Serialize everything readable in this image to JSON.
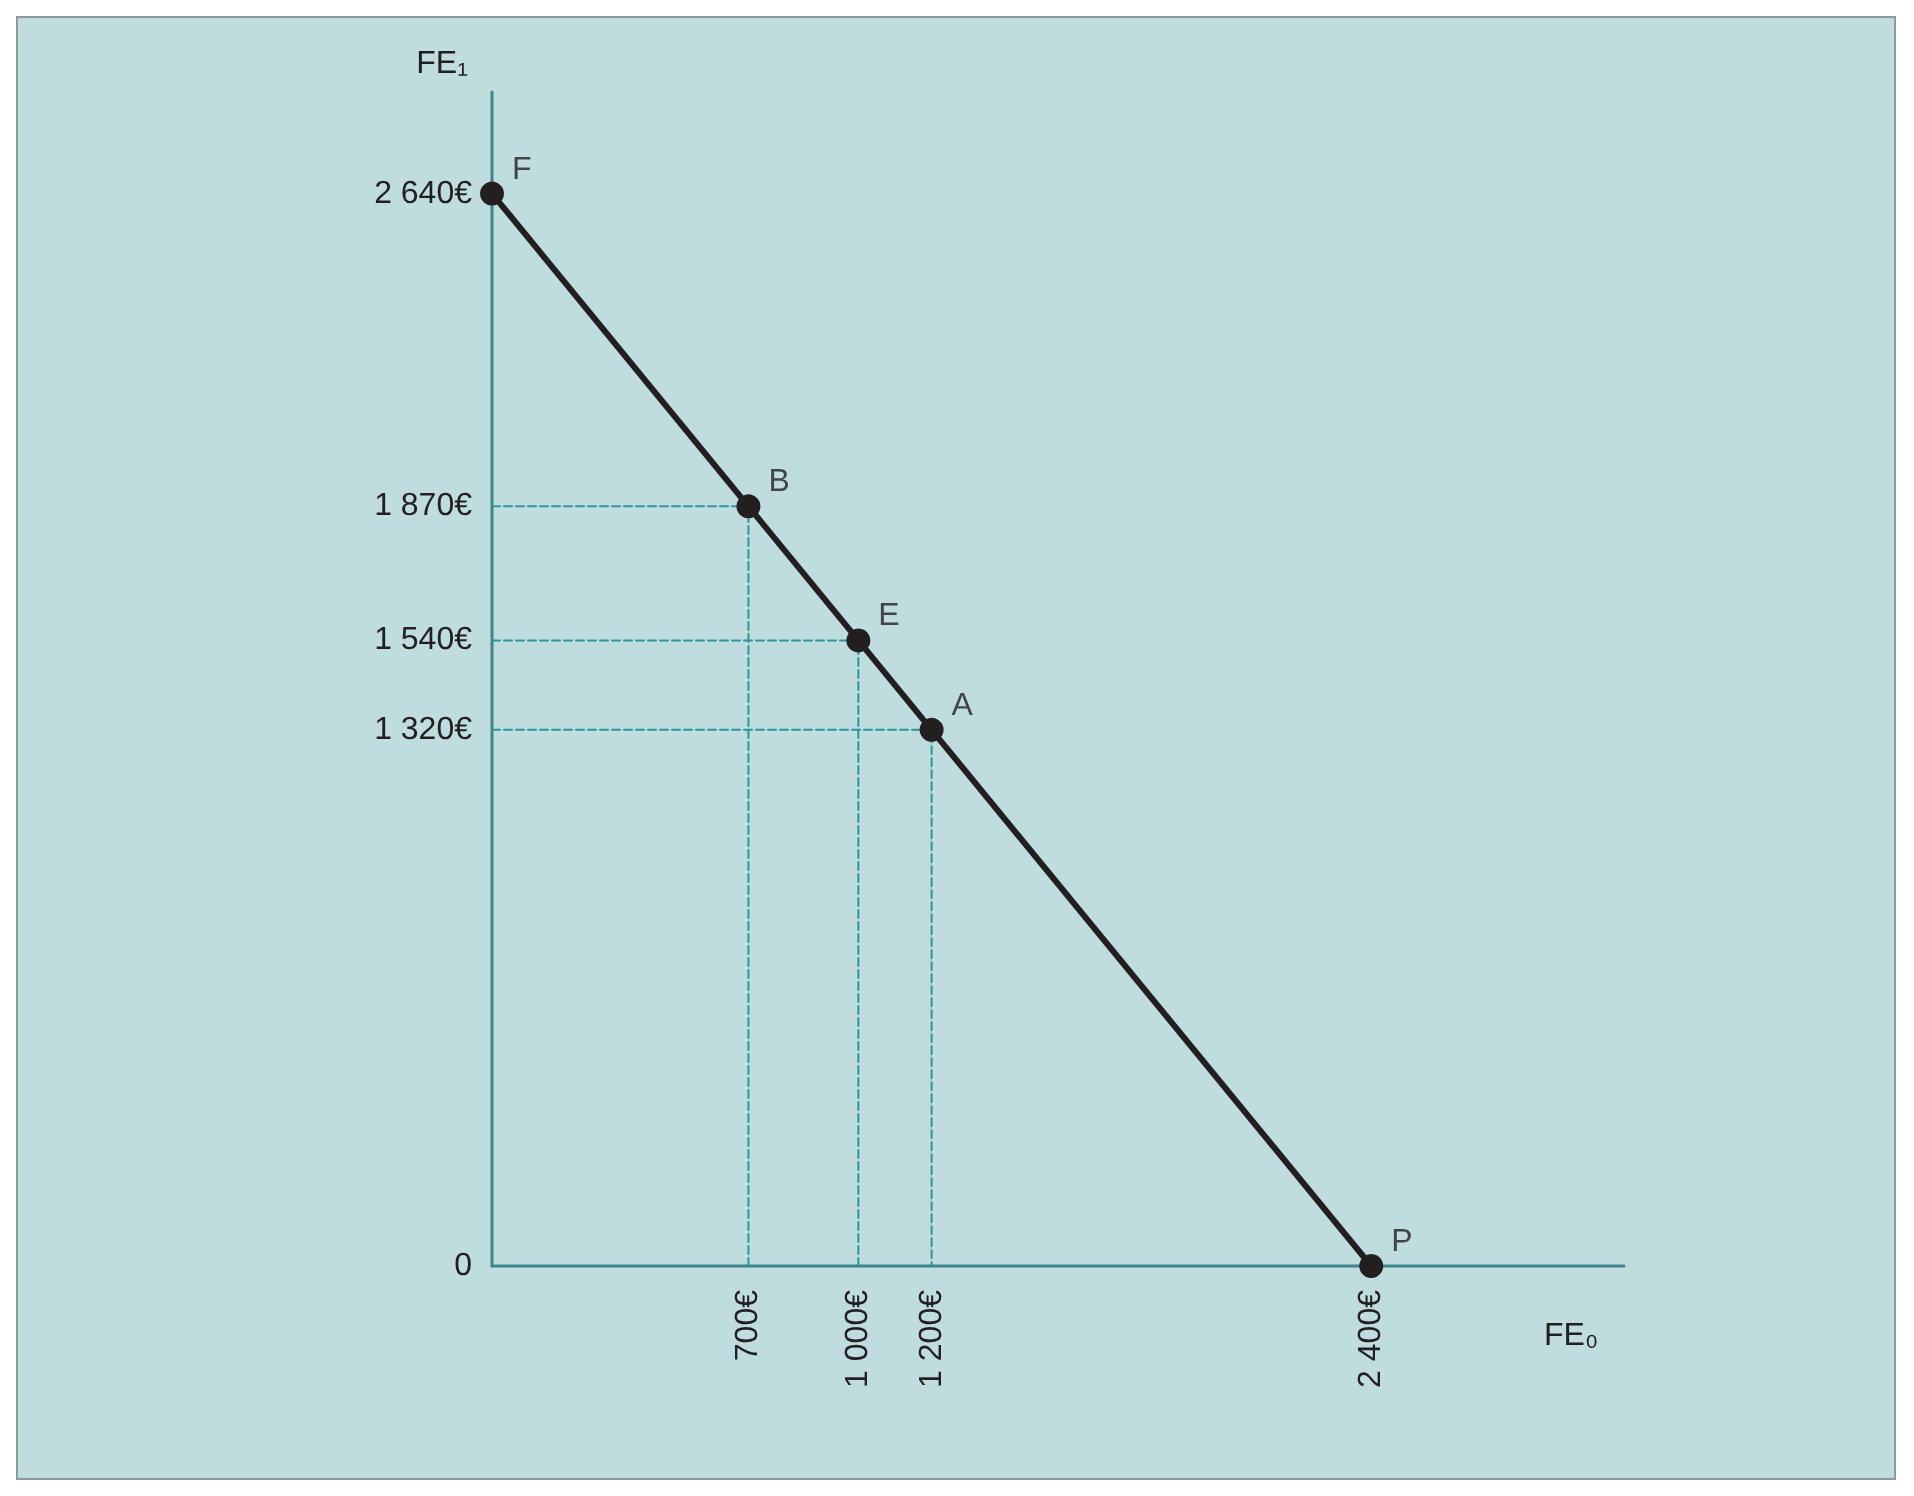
{
  "chart_data": {
    "type": "line",
    "xlabel": "FE₀",
    "ylabel": "FE₁",
    "x": [
      0,
      700,
      1000,
      1200,
      2400
    ],
    "series": [
      {
        "color": "#231f20",
        "values": [
          2640,
          1870,
          1540,
          1320,
          0
        ],
        "marker": "circle",
        "line_style": "solid"
      },
      {
        "color": "#2a9699",
        "x": [
          0,
          700,
          700
        ],
        "values": [
          1870,
          1870,
          0
        ],
        "marker": "none",
        "line_style": "dashed"
      },
      {
        "color": "#2a9699",
        "x": [
          0,
          1000,
          1000
        ],
        "values": [
          1540,
          1540,
          0
        ],
        "marker": "none",
        "line_style": "dashed"
      },
      {
        "color": "#2a9699",
        "x": [
          0,
          1200,
          1200
        ],
        "values": [
          1320,
          1320,
          0
        ],
        "marker": "none",
        "line_style": "dashed"
      }
    ],
    "xlim": [
      0,
      3090
    ],
    "ylim": [
      0,
      2890
    ],
    "xticks": [
      {
        "value": 0,
        "label": null
      },
      {
        "value": 700,
        "label": "700€"
      },
      {
        "value": 1000,
        "label": "1 000€"
      },
      {
        "value": 1200,
        "label": "1 200€"
      },
      {
        "value": 2400,
        "label": "2 400€"
      }
    ],
    "yticks": [
      {
        "value": 0,
        "label": "0"
      },
      {
        "value": 1320,
        "label": "1 320€"
      },
      {
        "value": 1540,
        "label": "1 540€"
      },
      {
        "value": 1870,
        "label": "1 870€"
      },
      {
        "value": 2640,
        "label": "2 640€"
      }
    ],
    "annotations": [
      {
        "text": "F",
        "x": 0,
        "y": 2640
      },
      {
        "text": "B",
        "x": 700,
        "y": 1870
      },
      {
        "text": "E",
        "x": 1000,
        "y": 1540
      },
      {
        "text": "A",
        "x": 1200,
        "y": 1320
      },
      {
        "text": "P",
        "x": 2400,
        "y": 0
      }
    ],
    "tick_labels": true
  }
}
